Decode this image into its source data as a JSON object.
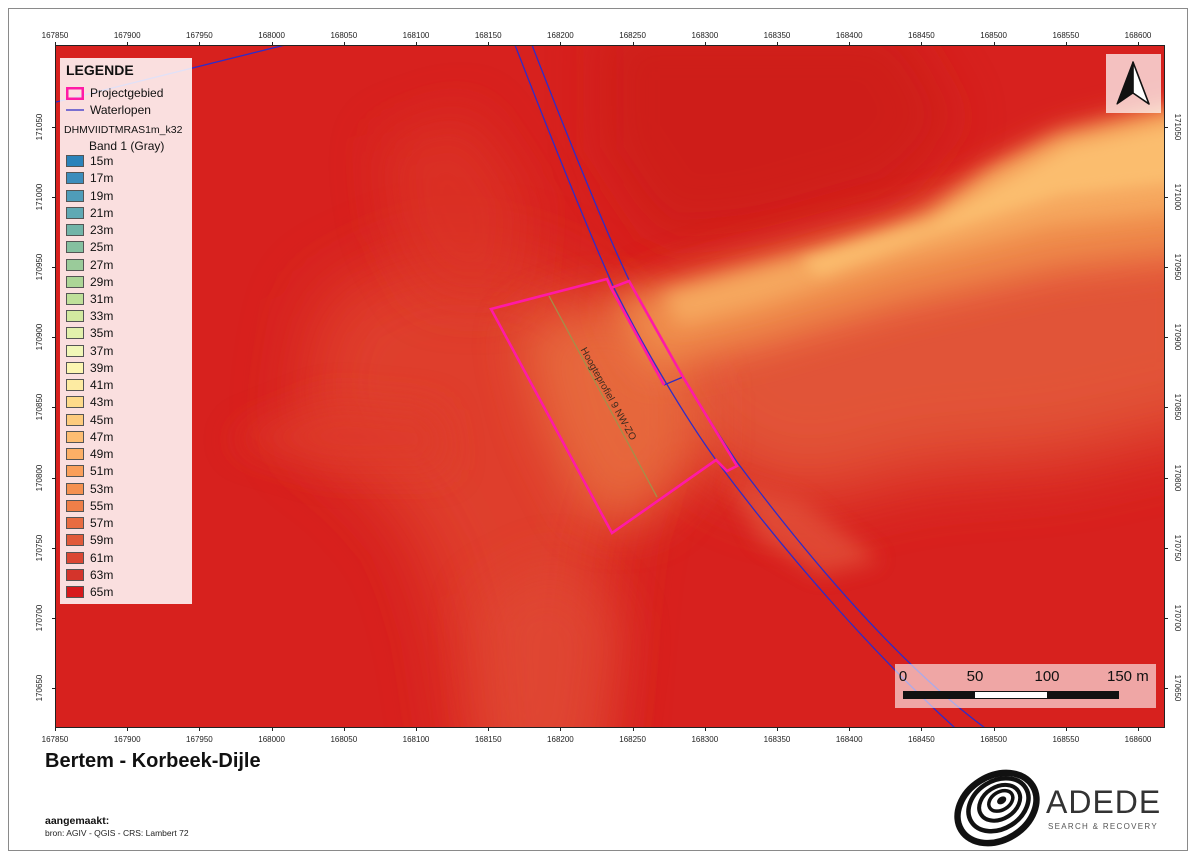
{
  "map": {
    "title": "Bertem - Korbeek-Dijle",
    "created_label": "aangemaakt:",
    "source": "bron: AGIV - QGIS - CRS: Lambert 72",
    "profile_label": "Hoogteprofiel 9 NW-ZO",
    "x_ticks": [
      "167850",
      "167900",
      "167950",
      "168000",
      "168050",
      "168100",
      "168150",
      "168200",
      "168250",
      "168300",
      "168350",
      "168400",
      "168450",
      "168500",
      "168550",
      "168600"
    ],
    "y_ticks": [
      "171050",
      "171000",
      "170950",
      "170900",
      "170850",
      "170800",
      "170750",
      "170700",
      "170650"
    ]
  },
  "legend": {
    "title": "LEGENDE",
    "project_area_label": "Projectgebied",
    "waterways_label": "Waterlopen",
    "layer_name": "DHMVIIDTMRAS1m_k32",
    "band_name": "Band 1 (Gray)",
    "classes": [
      {
        "label": "15m",
        "color": "#2b83ba"
      },
      {
        "label": "17m",
        "color": "#3c8dbc"
      },
      {
        "label": "19m",
        "color": "#4f9cb9"
      },
      {
        "label": "21m",
        "color": "#5fa9b4"
      },
      {
        "label": "23m",
        "color": "#72b4a8"
      },
      {
        "label": "25m",
        "color": "#85c0a0"
      },
      {
        "label": "27m",
        "color": "#9acb9a"
      },
      {
        "label": "29m",
        "color": "#acd597"
      },
      {
        "label": "31m",
        "color": "#bfe09a"
      },
      {
        "label": "33m",
        "color": "#d2e9a0"
      },
      {
        "label": "35m",
        "color": "#e2f1ac"
      },
      {
        "label": "37m",
        "color": "#f1f7b8"
      },
      {
        "label": "39m",
        "color": "#fcf6b2"
      },
      {
        "label": "41m",
        "color": "#fdeba2"
      },
      {
        "label": "43m",
        "color": "#fdda8a"
      },
      {
        "label": "45m",
        "color": "#fdcb7d"
      },
      {
        "label": "47m",
        "color": "#fdbd72"
      },
      {
        "label": "49m",
        "color": "#fcaf66"
      },
      {
        "label": "51m",
        "color": "#fa9f5a"
      },
      {
        "label": "53m",
        "color": "#f5904f"
      },
      {
        "label": "55m",
        "color": "#ef7f48"
      },
      {
        "label": "57m",
        "color": "#e86c41"
      },
      {
        "label": "59m",
        "color": "#e15a3a"
      },
      {
        "label": "61m",
        "color": "#db4733"
      },
      {
        "label": "63m",
        "color": "#d4342b"
      },
      {
        "label": "65m",
        "color": "#d7191c"
      }
    ]
  },
  "scale_bar": {
    "labels": [
      "0",
      "50",
      "100",
      "150 m"
    ]
  },
  "logo": {
    "name": "ADEDE",
    "tagline": "SEARCH & RECOVERY"
  },
  "icons": {
    "north_arrow": "north-arrow-icon",
    "logo": "adede-contour-logo-icon"
  },
  "colors": {
    "elevation_base": "#d7211e",
    "project_area": "#ff1aa6",
    "waterways": "#2f2cc8",
    "profile_line": "#a38f4a"
  }
}
